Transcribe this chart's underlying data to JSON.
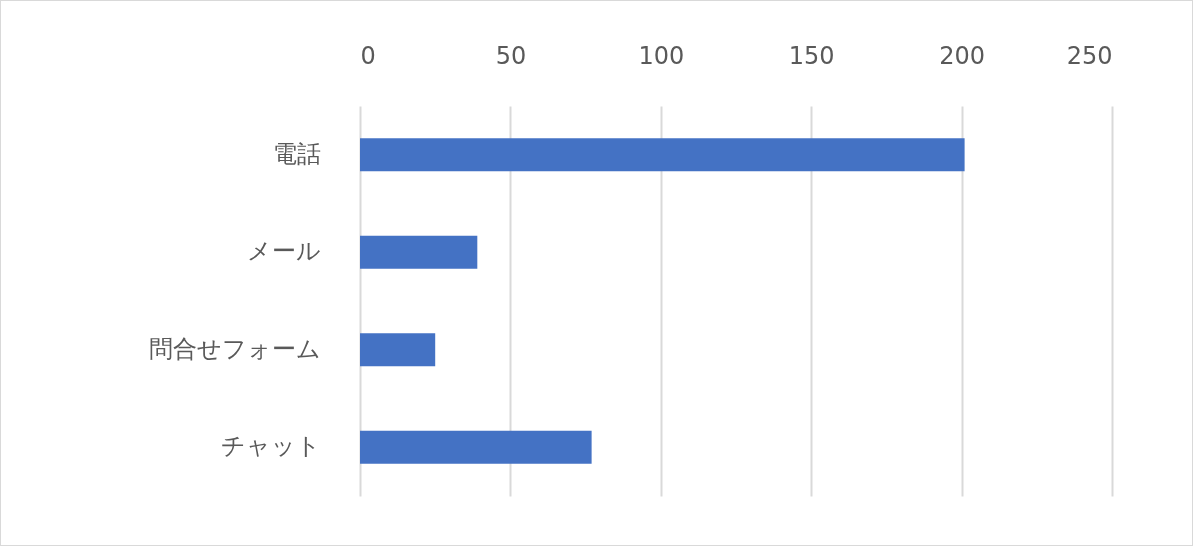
{
  "chart_data": {
    "type": "bar",
    "orientation": "horizontal",
    "categories": [
      "電話",
      "メール",
      "問合せフォーム",
      "チャット"
    ],
    "values": [
      201,
      39,
      25,
      77
    ],
    "color": "#4472c4",
    "xlim": [
      0,
      250
    ],
    "xticks": [
      0,
      50,
      100,
      150,
      200,
      250
    ],
    "grid": "x"
  }
}
